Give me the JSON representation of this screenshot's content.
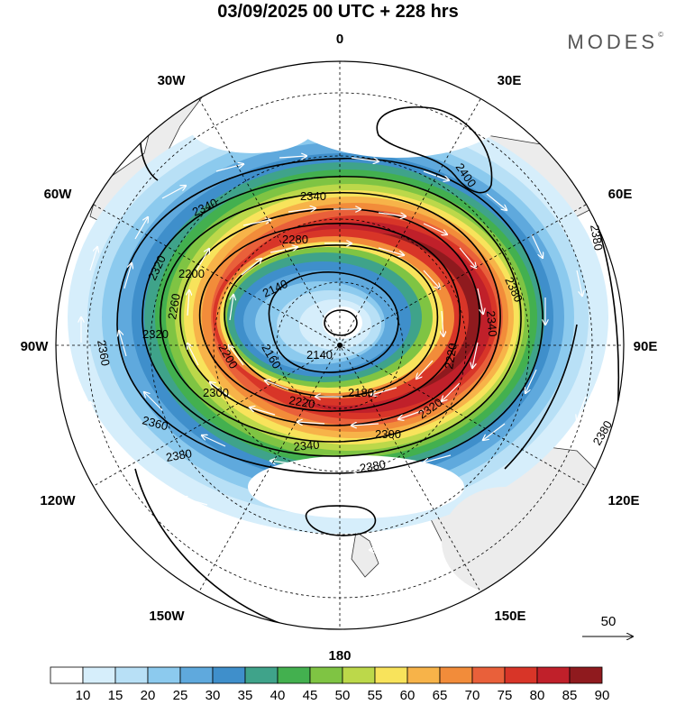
{
  "title": "03/09/2025  00 UTC  + 228 hrs",
  "brand": "MODES",
  "brand_mark": "©",
  "colors": {
    "bands": [
      "#ffffff",
      "#d6eefb",
      "#b8e0f6",
      "#8ccaee",
      "#5fa9dd",
      "#3f8fcb",
      "#3fa38a",
      "#43b04f",
      "#7fc443",
      "#bcd84a",
      "#f8e35b",
      "#f7b349",
      "#f28c3a",
      "#e9603a",
      "#d83528",
      "#c0202a",
      "#8f1a1e"
    ],
    "land": "#ececec",
    "coast": "#333333"
  },
  "map": {
    "projection": "south polar stereographic",
    "longitude_labels": {
      "top": "0",
      "bottom": "180",
      "left": "90W",
      "right": "90E",
      "upper_left_30": "30W",
      "upper_right_30": "30E",
      "upper_left_60": "60W",
      "upper_right_60": "60E",
      "lower_left_120": "120W",
      "lower_right_120": "120E",
      "lower_left_150": "150W",
      "lower_right_150": "150E"
    },
    "contour_labels": [
      "2400",
      "2380",
      "2380",
      "2380",
      "2380",
      "2360",
      "2360",
      "2340",
      "2340",
      "2340",
      "2320",
      "2320",
      "2320",
      "2300",
      "2300",
      "2280",
      "2260",
      "2220",
      "2220",
      "2200",
      "2200",
      "2180",
      "2160",
      "2140",
      "2140",
      "2340",
      "2380"
    ]
  },
  "legend": {
    "ticks": [
      "10",
      "15",
      "20",
      "25",
      "30",
      "35",
      "40",
      "45",
      "50",
      "55",
      "60",
      "65",
      "70",
      "75",
      "80",
      "85",
      "90"
    ]
  },
  "scale_vector": {
    "label": "50"
  }
}
